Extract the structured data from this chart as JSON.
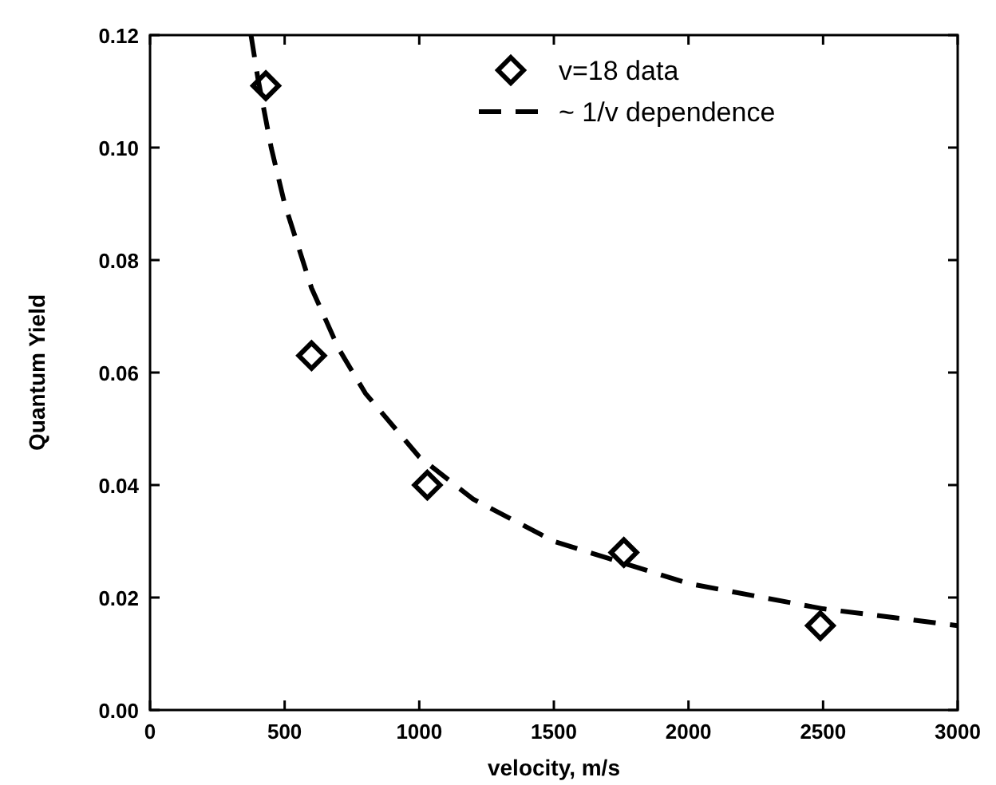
{
  "chart_data": {
    "type": "scatter",
    "xlabel": "velocity, m/s",
    "ylabel": "Quantum Yield",
    "xlim": [
      0,
      3000
    ],
    "ylim": [
      0,
      0.12
    ],
    "xticks": [
      0,
      500,
      1000,
      1500,
      2000,
      2500,
      3000
    ],
    "yticks": [
      {
        "value": 0,
        "label": "0.00"
      },
      {
        "value": 0.02,
        "label": "0.02"
      },
      {
        "value": 0.04,
        "label": "0.04"
      },
      {
        "value": 0.06,
        "label": "0.06"
      },
      {
        "value": 0.08,
        "label": "0.08"
      },
      {
        "value": 0.1,
        "label": "0.10"
      },
      {
        "value": 0.12,
        "label": "0.12"
      }
    ],
    "legend": "top right",
    "grid": false,
    "series": [
      {
        "name": "v=18 data",
        "marker": "diamond",
        "color": "#000000",
        "x": [
          430,
          600,
          1030,
          1760,
          2490
        ],
        "values": [
          0.111,
          0.063,
          0.04,
          0.028,
          0.015
        ]
      },
      {
        "name": "~ 1/v dependence",
        "type": "line",
        "line_style": "dashed",
        "color": "#000000",
        "x": [
          375,
          400,
          450,
          500,
          600,
          700,
          800,
          1000,
          1200,
          1500,
          2000,
          2500,
          3000
        ],
        "values": [
          0.12,
          0.1125,
          0.1,
          0.09,
          0.075,
          0.0643,
          0.0563,
          0.045,
          0.0375,
          0.03,
          0.0225,
          0.018,
          0.015
        ]
      }
    ]
  }
}
